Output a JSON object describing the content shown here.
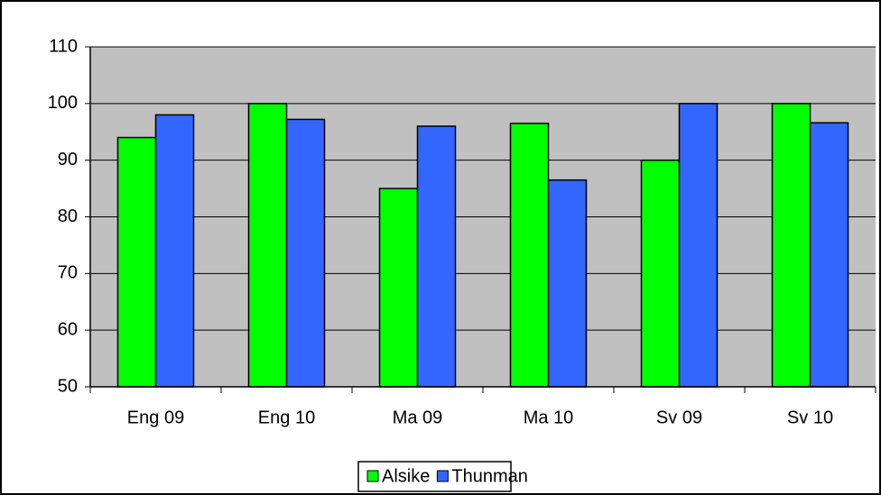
{
  "chart_data": {
    "type": "bar",
    "categories": [
      "Eng 09",
      "Eng 10",
      "Ma 09",
      "Ma 10",
      "Sv 09",
      "Sv 10"
    ],
    "series": [
      {
        "name": "Alsike",
        "color": "#00ff00",
        "values": [
          94,
          100,
          85,
          96.5,
          90,
          100
        ]
      },
      {
        "name": "Thunman",
        "color": "#3366ff",
        "values": [
          98,
          97.2,
          96,
          86.5,
          100,
          96.6
        ]
      }
    ],
    "ylim": [
      50,
      110
    ],
    "yticks": [
      50,
      60,
      70,
      80,
      90,
      100,
      110
    ],
    "grid": true,
    "legend": "bottom",
    "plot_background": "#c0c0c0"
  }
}
